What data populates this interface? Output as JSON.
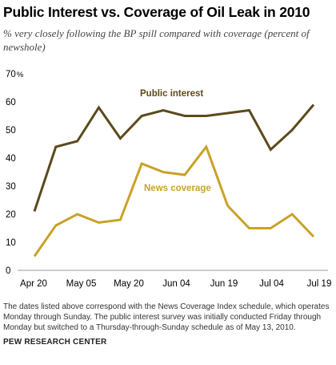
{
  "title": "Public Interest vs. Coverage of Oil Leak in 2010",
  "subtitle": "% very closely following the BP spill compared with coverage (percent of newshole)",
  "footnote": "The dates listed above correspond with the News Coverage Index schedule, which operates Monday through Sunday. The public interest survey was initially conducted Friday through Monday but switched to a Thursday-through-Sunday schedule as of May 13, 2010.",
  "source": "PEW RESEARCH CENTER",
  "chart_data": {
    "type": "line",
    "title": "Public Interest vs. Coverage of Oil Leak in 2010",
    "subtitle": "% very closely following the BP spill compared with coverage (percent of newshole)",
    "y_unit": "%",
    "ylim": [
      0,
      70
    ],
    "yticks": [
      0,
      10,
      20,
      30,
      40,
      50,
      60,
      70
    ],
    "x": [
      "Apr 20",
      "Apr 27",
      "May 05",
      "May 10",
      "May 17",
      "May 24",
      "Jun 01",
      "Jun 07",
      "Jun 14",
      "Jun 21",
      "Jun 28",
      "Jul 05",
      "Jul 12",
      "Jul 19"
    ],
    "xtick_labels": [
      "Apr 20",
      "May 05",
      "May 20",
      "Jun 04",
      "Jun 19",
      "Jul 04",
      "Jul 19"
    ],
    "series": [
      {
        "name": "Public interest",
        "color": "#5c4a1c",
        "values": [
          21,
          44,
          46,
          58,
          47,
          55,
          57,
          55,
          55,
          56,
          57,
          43,
          50,
          59
        ]
      },
      {
        "name": "News coverage",
        "color": "#c9a227",
        "values": [
          5,
          16,
          20,
          17,
          18,
          38,
          35,
          34,
          44,
          23,
          15,
          15,
          20,
          12
        ]
      }
    ],
    "grid": false,
    "legend": "inline labels"
  }
}
